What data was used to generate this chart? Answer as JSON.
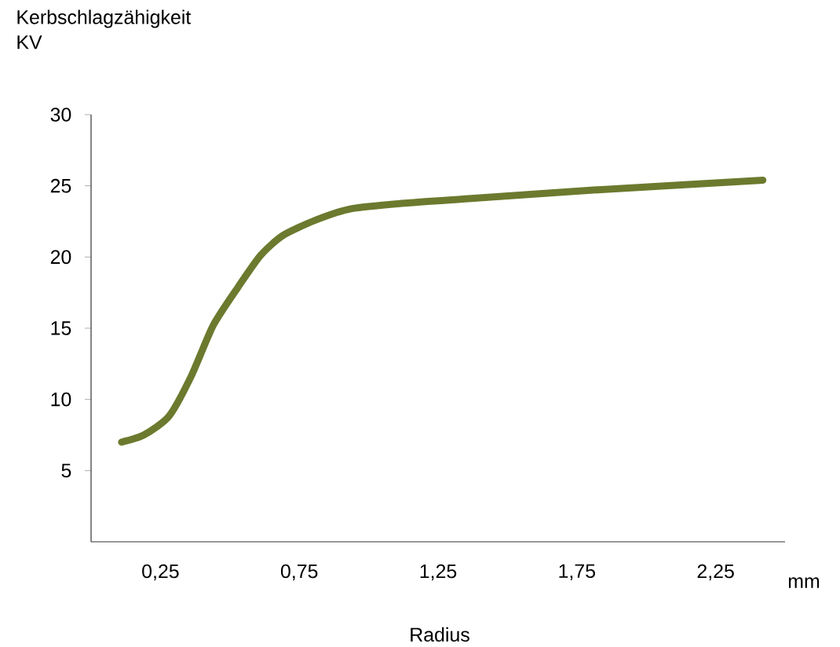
{
  "chart_data": {
    "type": "line",
    "ylabel": "Kerbschlagzähigkeit KV",
    "xlabel": "Radius",
    "annotations": [
      "mm"
    ],
    "xlim": [
      0,
      2.5
    ],
    "ylim": [
      0,
      30
    ],
    "xticks": [
      {
        "value": 0.25,
        "label": "0,25"
      },
      {
        "value": 0.75,
        "label": "0,75"
      },
      {
        "value": 1.25,
        "label": "1,25"
      },
      {
        "value": 1.75,
        "label": "1,75"
      },
      {
        "value": 2.25,
        "label": "2,25"
      }
    ],
    "yticks": [
      5,
      10,
      15,
      20,
      25,
      30
    ],
    "grid": false,
    "marker": "none",
    "line_style": "solid",
    "series": [
      {
        "color": "#6b7a2e",
        "x": [
          0.11,
          0.19,
          0.28,
          0.36,
          0.44,
          0.53,
          0.61,
          0.69,
          0.81,
          0.94,
          1.14,
          1.36,
          1.81,
          2.42
        ],
        "values": [
          7.0,
          7.5,
          8.8,
          11.6,
          15.2,
          17.9,
          20.1,
          21.5,
          22.6,
          23.4,
          23.8,
          24.1,
          24.7,
          25.4
        ]
      }
    ]
  }
}
